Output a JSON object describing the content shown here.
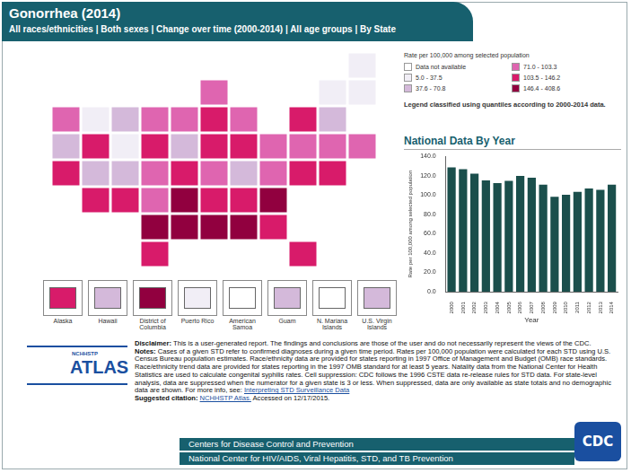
{
  "header": {
    "title": "Gonorrhea (2014)",
    "subtitle": "All races/ethnicities | Both sexes | Change over time (2000-2014) | All age groups | By State"
  },
  "map": {
    "type": "choropleth",
    "legend": {
      "title": "Rate per 100,000 among selected population",
      "items": [
        {
          "label": "Data not available",
          "color": "#ffffff"
        },
        {
          "label": "5.0 - 37.5",
          "color": "#f1eef6"
        },
        {
          "label": "37.6 - 70.8",
          "color": "#d4b9da"
        },
        {
          "label": "71.0 - 103.3",
          "color": "#df65b0"
        },
        {
          "label": "103.5 - 146.2",
          "color": "#d81b6a"
        },
        {
          "label": "146.4 - 408.6",
          "color": "#91003f"
        }
      ],
      "note": "Legend classified using quantiles according to 2000-2014 data."
    },
    "states": {
      "WA": "71.0 - 103.3",
      "OR": "37.6 - 70.8",
      "CA": "103.5 - 146.2",
      "NV": "103.5 - 146.2",
      "ID": "5.0 - 37.5",
      "MT": "37.6 - 70.8",
      "WY": "5.0 - 37.5",
      "UT": "37.6 - 70.8",
      "CO": "37.6 - 70.8",
      "AZ": "103.5 - 146.2",
      "NM": "103.5 - 146.2",
      "ND": "71.0 - 103.3",
      "SD": "103.5 - 146.2",
      "NE": "71.0 - 103.3",
      "KS": "71.0 - 103.3",
      "OK": "146.4 - 408.6",
      "TX": "103.5 - 146.2",
      "MN": "71.0 - 103.3",
      "IA": "37.6 - 70.8",
      "MO": "103.5 - 146.2",
      "AR": "146.4 - 408.6",
      "LA": "146.4 - 408.6",
      "WI": "71.0 - 103.3",
      "IL": "103.5 - 146.2",
      "MI": "71.0 - 103.3",
      "IN": "103.5 - 146.2",
      "OH": "103.5 - 146.2",
      "KY": "71.0 - 103.3",
      "TN": "103.5 - 146.2",
      "MS": "146.4 - 408.6",
      "AL": "146.4 - 408.6",
      "GA": "103.5 - 146.2",
      "FL": "103.5 - 146.2",
      "SC": "146.4 - 408.6",
      "NC": "103.5 - 146.2",
      "VA": "71.0 - 103.3",
      "WV": "37.6 - 70.8",
      "PA": "71.0 - 103.3",
      "NY": "103.5 - 146.2",
      "VT": "5.0 - 37.5",
      "NH": "5.0 - 37.5",
      "ME": "5.0 - 37.5",
      "MA": "37.6 - 70.8",
      "RI": "71.0 - 103.3",
      "CT": "71.0 - 103.3",
      "NJ": "71.0 - 103.3",
      "DE": "103.5 - 146.2",
      "MD": "103.5 - 146.2"
    },
    "territories": [
      {
        "label": "Alaska",
        "class": "103.5 - 146.2"
      },
      {
        "label": "Hawaii",
        "class": "37.6 - 70.8"
      },
      {
        "label": "District of Columbia",
        "class": "146.4 - 408.6"
      },
      {
        "label": "Puerto Rico",
        "class": "5.0 - 37.5"
      },
      {
        "label": "American Samoa",
        "class": "Data not available"
      },
      {
        "label": "Guam",
        "class": "37.6 - 70.8"
      },
      {
        "label": "N. Mariana Islands",
        "class": "Data not available"
      },
      {
        "label": "U.S. Virgin Islands",
        "class": "37.6 - 70.8"
      }
    ]
  },
  "chart_data": {
    "type": "bar",
    "title": "National Data By Year",
    "x_label": "Year",
    "y_label": "Rate per 100,000 among selected population",
    "categories": [
      "2000",
      "2001",
      "2002",
      "2003",
      "2004",
      "2005",
      "2006",
      "2007",
      "2008",
      "2009",
      "2010",
      "2011",
      "2012",
      "2013",
      "2014"
    ],
    "values": [
      128.7,
      126.8,
      122.0,
      115.2,
      112.4,
      114.6,
      119.7,
      118.0,
      110.7,
      98.1,
      100.2,
      103.3,
      106.7,
      105.3,
      110.7
    ],
    "color": "#1b4f4c",
    "ylim": [
      0,
      140
    ],
    "yticks": [
      {
        "value": 0,
        "label": "0.0"
      },
      {
        "value": 20,
        "label": "20.0"
      },
      {
        "value": 40,
        "label": "40.0"
      },
      {
        "value": 60,
        "label": "60.0"
      },
      {
        "value": 80,
        "label": "80.0"
      },
      {
        "value": 100,
        "label": "100.0"
      },
      {
        "value": 120,
        "label": "120.0"
      },
      {
        "value": 140,
        "label": "140.0"
      }
    ],
    "grid": false
  },
  "notes": [
    {
      "label": "Disclaimer:",
      "text": "This is a user-generated report. The findings and conclusions are those of the user and do not necessarily represent the views of the CDC."
    },
    {
      "label": "Notes:",
      "text": "Cases of a given STD refer to confirmed diagnoses during a given time period. Rates per 100,000 population were calculated for each STD using U.S. Census Bureau population estimates. Race/ethnicity data are provided for states reporting in 1997 Office of Management and Budget (OMB) race standards. Race/ethnicity trend data are provided for states reporting in the 1997 OMB standard for at least 5 years. Natality data from the National Center for Health Statistics are used to calculate congenital syphilis rates. Cell suppression: CDC follows the 1996 CSTE data re-release rules for STD data. For state-level analysis, data are suppressed when the numerator for a given state is 3 or less. When suppressed, data are only available as state totals and no demographic data are shown. For more info, see:",
      "link": "Interpreting STD Surveillance Data"
    },
    {
      "label": "Suggested citation:",
      "link": "NCHHSTP Atlas.",
      "text": "Accessed on 12/17/2015."
    }
  ],
  "logos": {
    "atlas": [
      "NCHHSTP",
      "ATLAS"
    ],
    "cdc": "CDC"
  },
  "footer": [
    "Centers for Disease Control and Prevention",
    "National Center for HIV/AIDS, Viral Hepatitis, STD, and TB Prevention"
  ]
}
